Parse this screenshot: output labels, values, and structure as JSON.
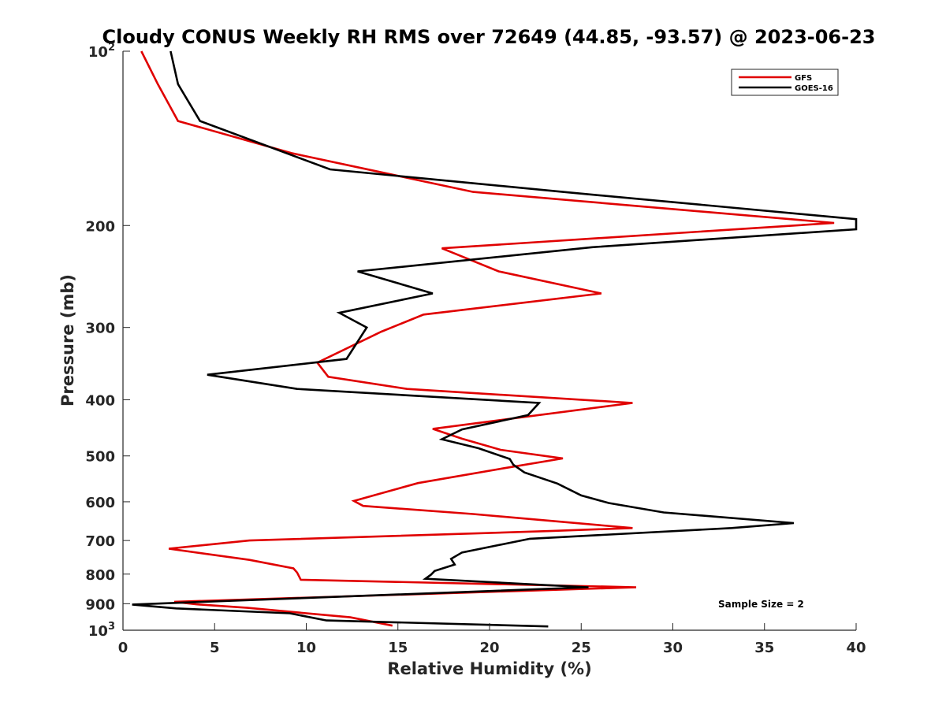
{
  "chart_data": {
    "type": "line",
    "title": "Cloudy CONUS Weekly RH RMS over 72649 (44.85, -93.57) @ 2023-06-23",
    "xlabel": "Relative Humidity (%)",
    "ylabel": "Pressure (mb)",
    "xlim": [
      0,
      40
    ],
    "ylim": [
      100,
      1000
    ],
    "yscale": "log",
    "y_reversed": true,
    "x_ticks": [
      "0",
      "5",
      "10",
      "15",
      "20",
      "25",
      "30",
      "35",
      "40"
    ],
    "y_ticks": [
      {
        "value": 100,
        "label": "10",
        "sup": "2"
      },
      {
        "value": 200,
        "label": "200"
      },
      {
        "value": 300,
        "label": "300"
      },
      {
        "value": 400,
        "label": "400"
      },
      {
        "value": 500,
        "label": "500"
      },
      {
        "value": 600,
        "label": "600"
      },
      {
        "value": 700,
        "label": "700"
      },
      {
        "value": 800,
        "label": "800"
      },
      {
        "value": 900,
        "label": "900"
      },
      {
        "value": 1000,
        "label": "10",
        "sup": "3"
      }
    ],
    "legend_position": "top-right",
    "grid": false,
    "annotation": "Sample Size = 2",
    "series": [
      {
        "name": "GFS",
        "color": "#e00000",
        "x": [
          1.0,
          1.9,
          3.0,
          9.2,
          19.1,
          38.8,
          17.4,
          20.5,
          26.1,
          16.4,
          14.1,
          10.6,
          11.2,
          15.5,
          27.8,
          16.9,
          18.5,
          20.6,
          24.0,
          20.8,
          16.1,
          14.1,
          12.6,
          13.1,
          19.1,
          27.8,
          23.3,
          6.9,
          2.5,
          6.9,
          9.3,
          9.5,
          9.7,
          28.0,
          2.8,
          4.0,
          6.8,
          12.4,
          14.7
        ],
        "y": [
          100,
          114,
          132,
          150,
          175,
          198,
          219,
          240,
          262,
          285,
          305,
          345,
          365,
          383,
          405,
          449,
          467,
          488,
          505,
          525,
          557,
          580,
          598,
          610,
          630,
          666,
          674,
          700,
          723,
          756,
          782,
          795,
          818,
          843,
          893,
          902,
          915,
          950,
          982
        ]
      },
      {
        "name": "GOES-16",
        "color": "#000000",
        "x": [
          2.6,
          3.0,
          4.2,
          11.3,
          24.0,
          40.0,
          40.0,
          25.6,
          12.8,
          16.9,
          11.8,
          13.3,
          12.2,
          4.6,
          9.5,
          22.7,
          22.1,
          18.5,
          17.4,
          19.4,
          21.1,
          21.3,
          21.9,
          23.7,
          25.0,
          26.5,
          29.5,
          36.6,
          33.2,
          22.2,
          18.5,
          17.9,
          18.1,
          17.0,
          16.8,
          16.5,
          25.4,
          0.5,
          2.9,
          9.1,
          11.1,
          23.2
        ],
        "y": [
          100,
          114,
          132,
          160,
          175,
          195,
          203,
          218,
          240,
          262,
          283,
          300,
          340,
          362,
          383,
          405,
          425,
          450,
          468,
          485,
          506,
          518,
          534,
          558,
          585,
          603,
          626,
          653,
          666,
          695,
          734,
          753,
          770,
          790,
          802,
          815,
          843,
          903,
          917,
          935,
          962,
          985
        ]
      }
    ]
  }
}
